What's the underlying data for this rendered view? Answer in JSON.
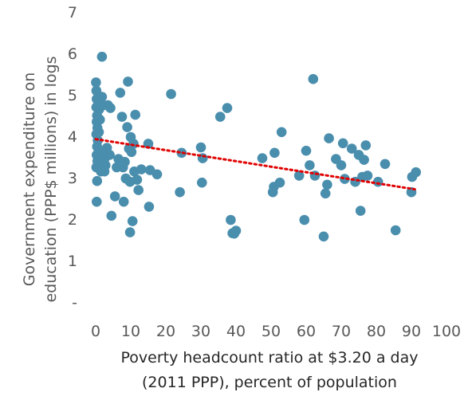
{
  "chart_data": {
    "type": "scatter",
    "title": "",
    "xlabel_lines": [
      "Poverty headcount ratio at $3.20 a day",
      "(2011 PPP), percent of population"
    ],
    "ylabel_lines": [
      "Government expenditure on",
      "education (PPP$ millions) in logs"
    ],
    "xlim": [
      0,
      100
    ],
    "ylim": [
      0,
      7
    ],
    "x_ticks": [
      "0",
      "10",
      "20",
      "30",
      "40",
      "50",
      "60",
      "70",
      "80",
      "90",
      "100"
    ],
    "y_ticks": [
      "-",
      "1",
      "2",
      "3",
      "4",
      "5",
      "6",
      "7"
    ],
    "grid": false,
    "legend": "none",
    "marker_color": "#4a8ead",
    "trendline": {
      "color": "#e00000",
      "style": "dotted",
      "x": [
        0,
        91
      ],
      "y": [
        3.93,
        2.72
      ]
    },
    "points": [
      {
        "x": 0.1,
        "y": 5.3
      },
      {
        "x": 0.2,
        "y": 5.1
      },
      {
        "x": 0.3,
        "y": 4.9
      },
      {
        "x": 0.2,
        "y": 4.7
      },
      {
        "x": 0.4,
        "y": 4.5
      },
      {
        "x": 0.3,
        "y": 4.35
      },
      {
        "x": 0.5,
        "y": 4.2
      },
      {
        "x": 0.2,
        "y": 4.05
      },
      {
        "x": 0.6,
        "y": 3.9
      },
      {
        "x": 0.4,
        "y": 3.75
      },
      {
        "x": 0.3,
        "y": 3.55
      },
      {
        "x": 0.5,
        "y": 3.4
      },
      {
        "x": 0.2,
        "y": 3.25
      },
      {
        "x": 0.4,
        "y": 2.92
      },
      {
        "x": 0.3,
        "y": 2.42
      },
      {
        "x": 0.8,
        "y": 4.8
      },
      {
        "x": 1.0,
        "y": 4.65
      },
      {
        "x": 1.2,
        "y": 4.4
      },
      {
        "x": 0.9,
        "y": 4.1
      },
      {
        "x": 1.5,
        "y": 3.15
      },
      {
        "x": 1.8,
        "y": 5.92
      },
      {
        "x": 1.8,
        "y": 4.95
      },
      {
        "x": 2.2,
        "y": 4.75
      },
      {
        "x": 1.6,
        "y": 3.6
      },
      {
        "x": 2.5,
        "y": 3.45
      },
      {
        "x": 2.8,
        "y": 3.3
      },
      {
        "x": 3.2,
        "y": 3.72
      },
      {
        "x": 2.5,
        "y": 3.15
      },
      {
        "x": 3.5,
        "y": 4.75
      },
      {
        "x": 4.2,
        "y": 4.68
      },
      {
        "x": 4.0,
        "y": 3.55
      },
      {
        "x": 4.5,
        "y": 2.08
      },
      {
        "x": 5.5,
        "y": 2.55
      },
      {
        "x": 6.0,
        "y": 3.25
      },
      {
        "x": 6.5,
        "y": 3.45
      },
      {
        "x": 7.0,
        "y": 5.05
      },
      {
        "x": 7.5,
        "y": 4.47
      },
      {
        "x": 7.8,
        "y": 3.25
      },
      {
        "x": 8.0,
        "y": 2.42
      },
      {
        "x": 8.3,
        "y": 3.38
      },
      {
        "x": 8.6,
        "y": 2.98
      },
      {
        "x": 9.0,
        "y": 4.22
      },
      {
        "x": 9.2,
        "y": 5.32
      },
      {
        "x": 9.5,
        "y": 3.7
      },
      {
        "x": 9.8,
        "y": 1.68
      },
      {
        "x": 9.8,
        "y": 2.9
      },
      {
        "x": 10.0,
        "y": 3.98
      },
      {
        "x": 10.2,
        "y": 3.62
      },
      {
        "x": 10.5,
        "y": 1.95
      },
      {
        "x": 10.8,
        "y": 3.82
      },
      {
        "x": 11.0,
        "y": 3.15
      },
      {
        "x": 11.3,
        "y": 4.52
      },
      {
        "x": 11.8,
        "y": 2.95
      },
      {
        "x": 12.2,
        "y": 2.7
      },
      {
        "x": 13.0,
        "y": 3.2
      },
      {
        "x": 15.0,
        "y": 3.82
      },
      {
        "x": 15.2,
        "y": 2.3
      },
      {
        "x": 15.5,
        "y": 3.18
      },
      {
        "x": 17.5,
        "y": 3.08
      },
      {
        "x": 21.5,
        "y": 5.02
      },
      {
        "x": 24.0,
        "y": 2.65
      },
      {
        "x": 24.5,
        "y": 3.6
      },
      {
        "x": 30.0,
        "y": 3.73
      },
      {
        "x": 30.3,
        "y": 2.88
      },
      {
        "x": 30.5,
        "y": 3.47
      },
      {
        "x": 35.5,
        "y": 4.47
      },
      {
        "x": 37.5,
        "y": 4.68
      },
      {
        "x": 38.5,
        "y": 1.98
      },
      {
        "x": 39.0,
        "y": 1.66
      },
      {
        "x": 39.5,
        "y": 1.65
      },
      {
        "x": 40.0,
        "y": 1.72
      },
      {
        "x": 47.5,
        "y": 3.47
      },
      {
        "x": 50.5,
        "y": 2.65
      },
      {
        "x": 50.8,
        "y": 2.78
      },
      {
        "x": 51.0,
        "y": 3.6
      },
      {
        "x": 52.5,
        "y": 2.88
      },
      {
        "x": 53.0,
        "y": 4.1
      },
      {
        "x": 58.0,
        "y": 3.05
      },
      {
        "x": 59.5,
        "y": 1.98
      },
      {
        "x": 60.0,
        "y": 3.65
      },
      {
        "x": 61.0,
        "y": 3.3
      },
      {
        "x": 62.0,
        "y": 5.38
      },
      {
        "x": 62.5,
        "y": 3.05
      },
      {
        "x": 65.0,
        "y": 1.58
      },
      {
        "x": 65.5,
        "y": 2.62
      },
      {
        "x": 66.0,
        "y": 2.83
      },
      {
        "x": 66.5,
        "y": 3.95
      },
      {
        "x": 68.5,
        "y": 3.45
      },
      {
        "x": 70.0,
        "y": 3.3
      },
      {
        "x": 70.5,
        "y": 3.83
      },
      {
        "x": 71.0,
        "y": 2.97
      },
      {
        "x": 73.0,
        "y": 3.7
      },
      {
        "x": 74.0,
        "y": 2.9
      },
      {
        "x": 75.0,
        "y": 3.55
      },
      {
        "x": 75.5,
        "y": 2.2
      },
      {
        "x": 76.0,
        "y": 3.02
      },
      {
        "x": 76.5,
        "y": 3.43
      },
      {
        "x": 77.0,
        "y": 3.78
      },
      {
        "x": 77.5,
        "y": 3.05
      },
      {
        "x": 80.5,
        "y": 2.9
      },
      {
        "x": 82.5,
        "y": 3.33
      },
      {
        "x": 85.5,
        "y": 1.73
      },
      {
        "x": 90.0,
        "y": 2.65
      },
      {
        "x": 90.2,
        "y": 3.02
      },
      {
        "x": 91.3,
        "y": 3.13
      }
    ]
  }
}
